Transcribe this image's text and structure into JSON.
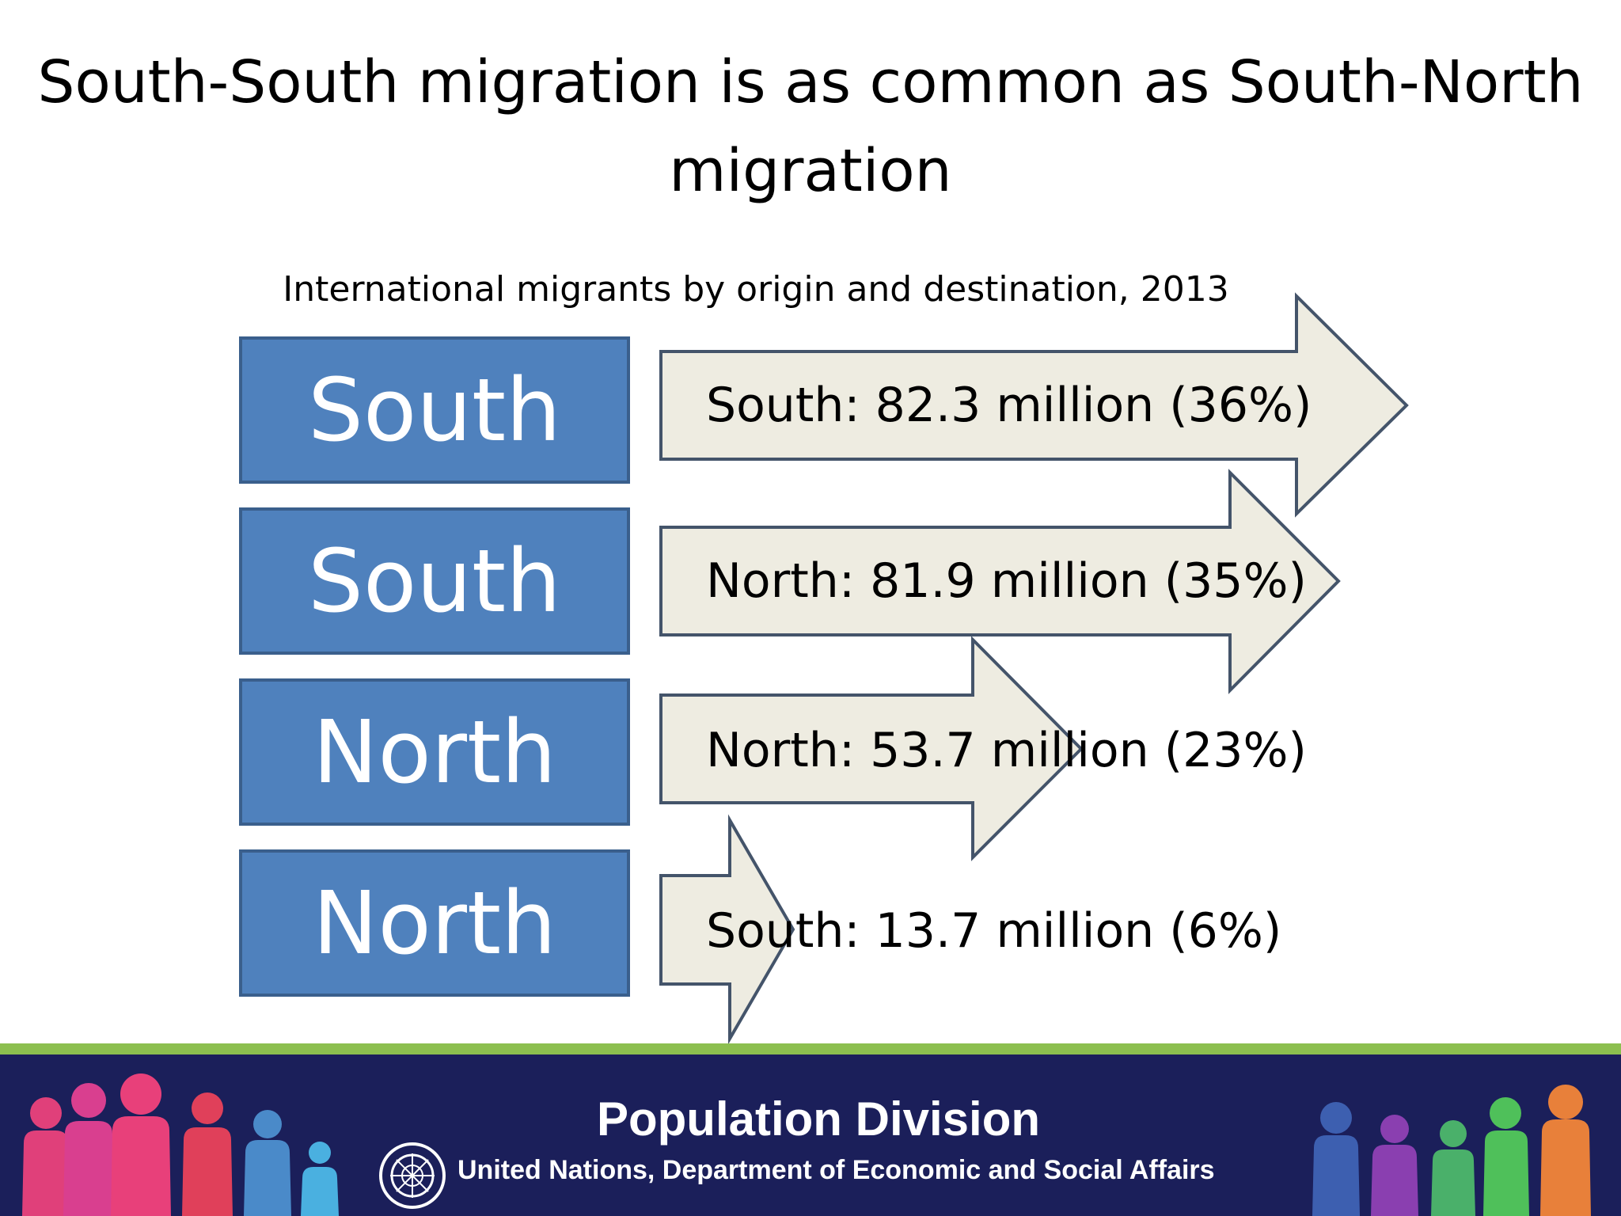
{
  "slide": {
    "title": "South-South migration is as common as South-North migration",
    "subtitle": "International migrants by origin and destination, 2013"
  },
  "flows": [
    {
      "origin": "South",
      "destination": "South",
      "migrants_million": 82.3,
      "share_percent": 36,
      "label": "South: 82.3 million (36%)"
    },
    {
      "origin": "South",
      "destination": "North",
      "migrants_million": 81.9,
      "share_percent": 35,
      "label": "North: 81.9 million (35%)"
    },
    {
      "origin": "North",
      "destination": "North",
      "migrants_million": 53.7,
      "share_percent": 23,
      "label": "North: 53.7 million (23%)"
    },
    {
      "origin": "North",
      "destination": "South",
      "migrants_million": 13.7,
      "share_percent": 6,
      "label": "South: 13.7 million (6%)"
    }
  ],
  "footer": {
    "division": "Population Division",
    "department": "United Nations, Department of Economic and Social Affairs"
  },
  "colors": {
    "origin_box": "#4f81bd",
    "arrow_fill": "#eeece1",
    "arrow_stroke": "#44546a",
    "footer_background": "#1b1f5a",
    "footer_stripe": "#8cbf4f"
  }
}
